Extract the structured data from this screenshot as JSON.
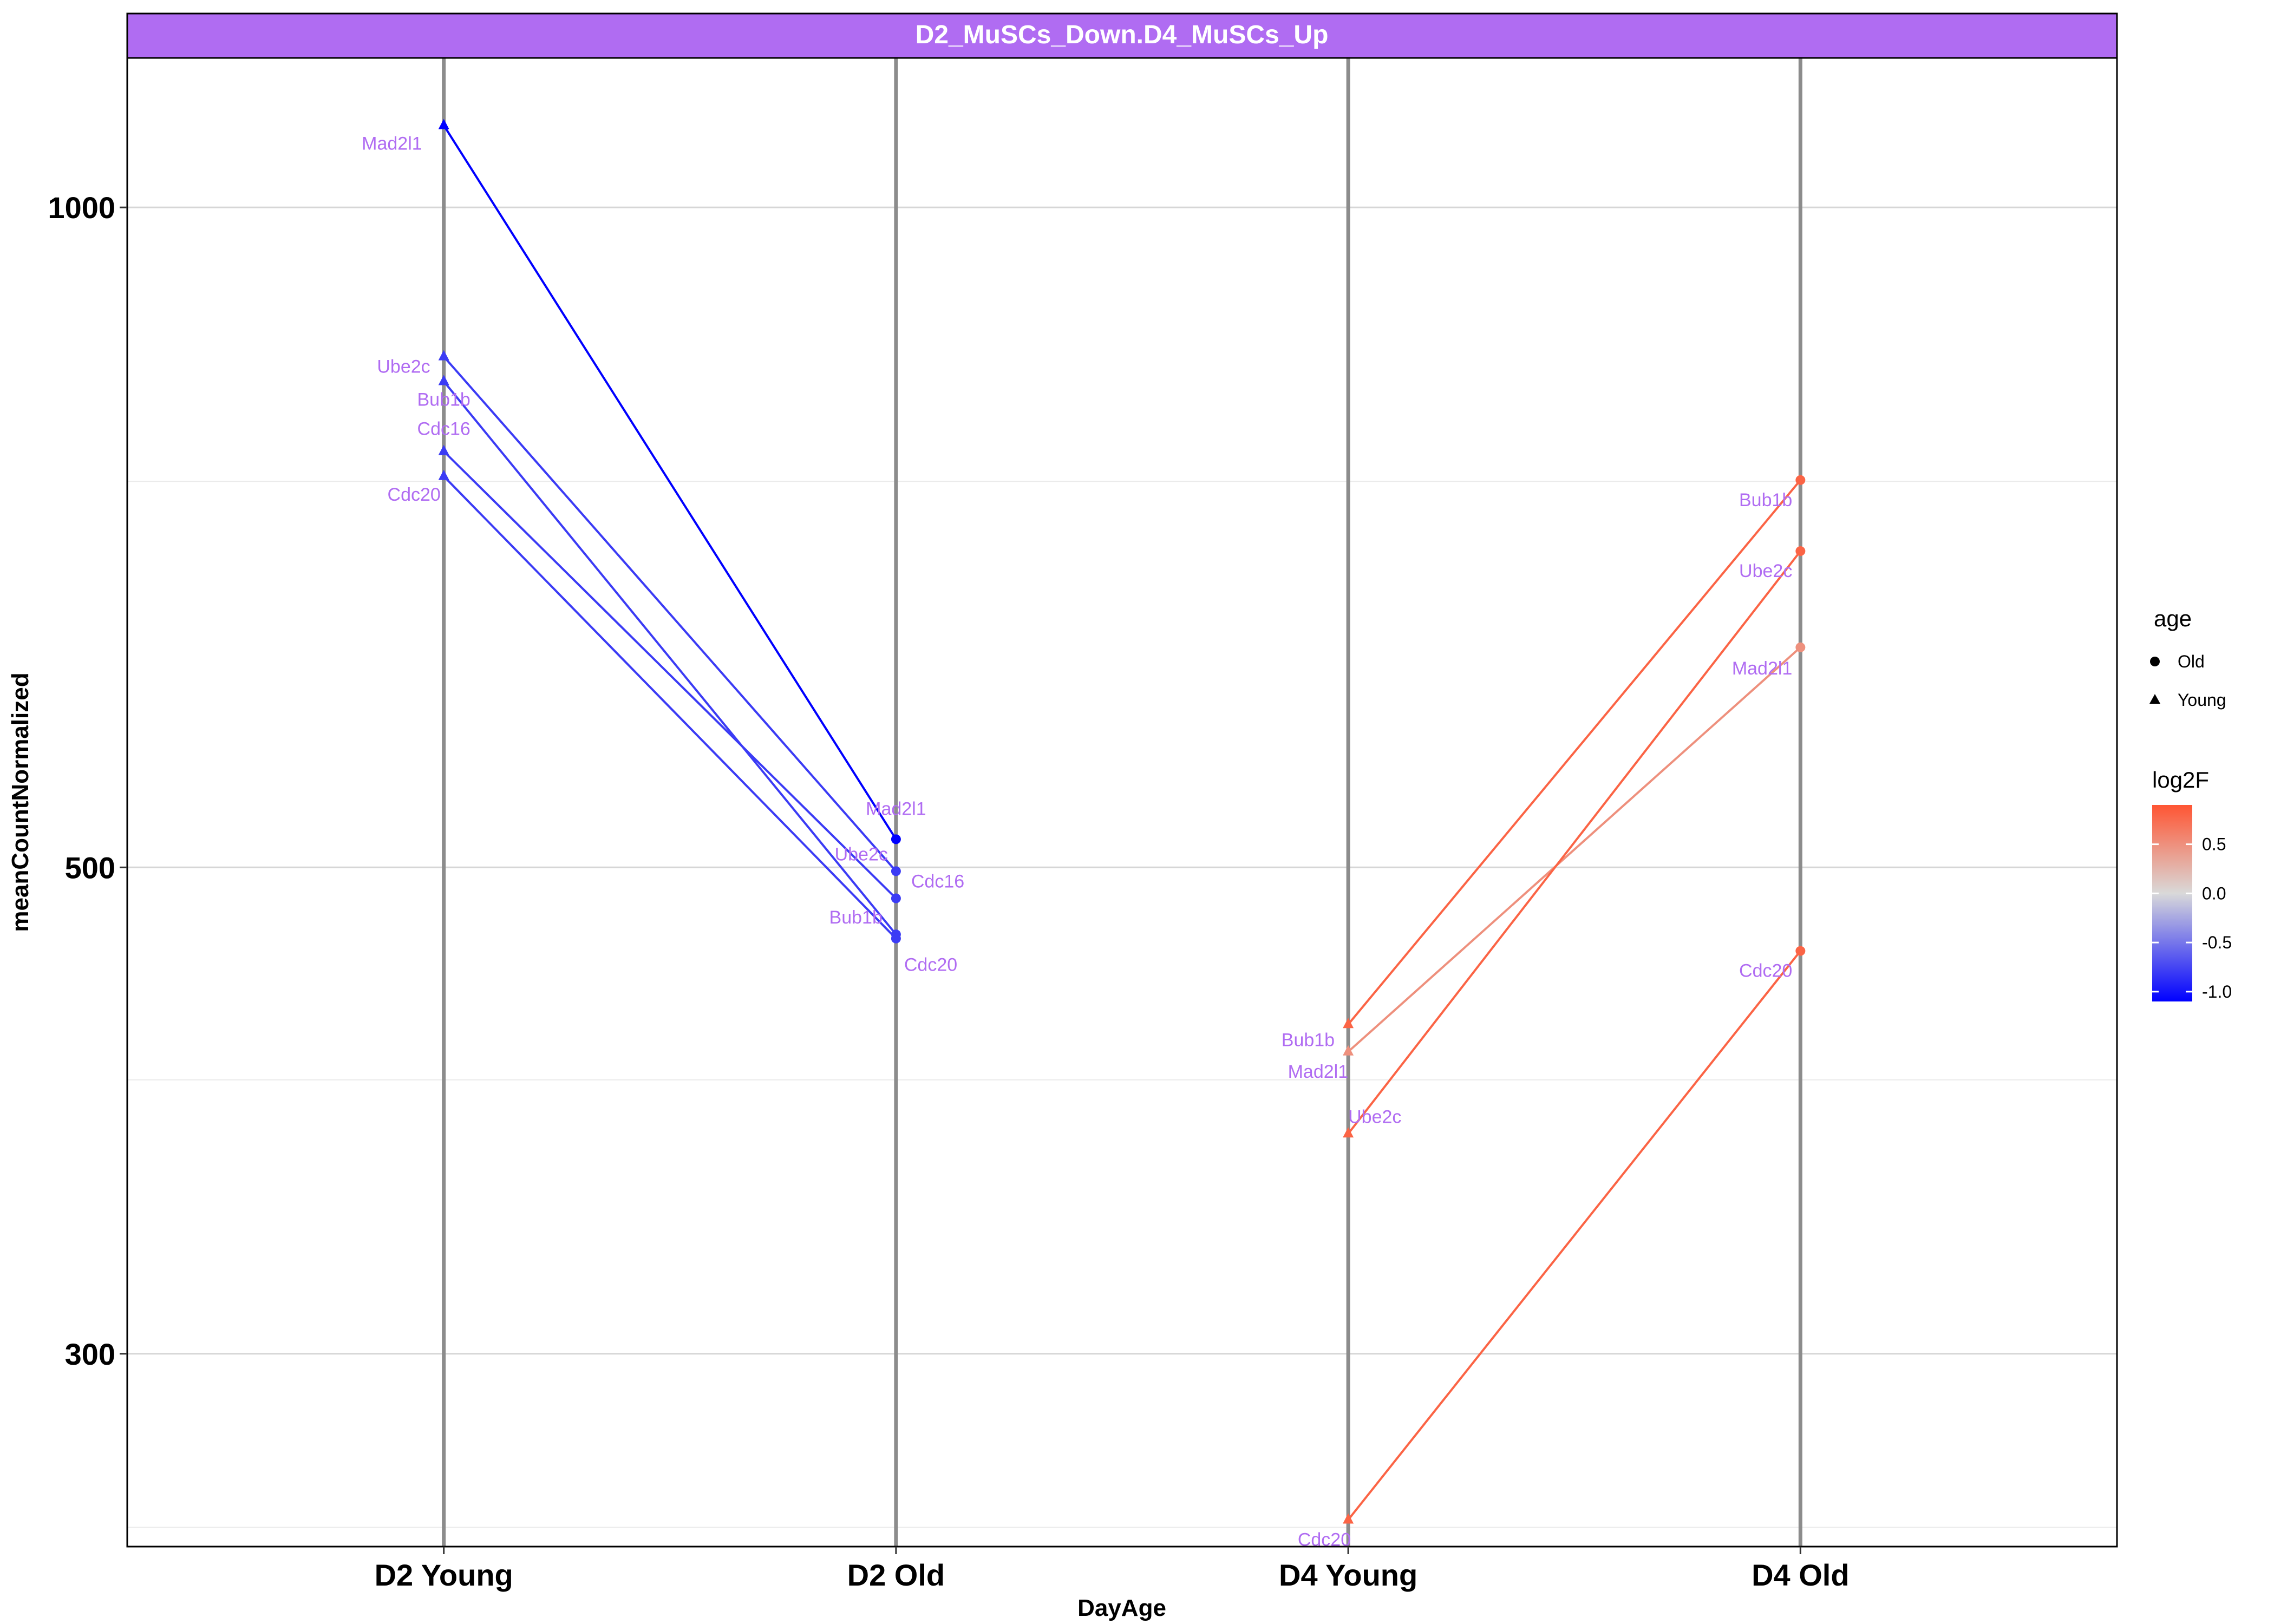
{
  "facet_title": "D2_MuSCs_Down.D4_MuSCs_Up",
  "colors": {
    "facet_strip": "#B06CF2",
    "label_text": "#B06CF2",
    "log2F_low": "#0000FF",
    "log2F_mid": "#D9D9D9",
    "log2F_high": "#FF5533"
  },
  "chart_data": {
    "type": "line",
    "title": "",
    "xlabel": "DayAge",
    "ylabel": "meanCountNormalized",
    "y_scale": "log10",
    "ylim": [
      245,
      1170
    ],
    "y_major_ticks": [
      300,
      500,
      1000
    ],
    "y_major_tick_labels": [
      "300",
      "500",
      "1000"
    ],
    "y_minor_ticks": [
      250,
      400,
      750
    ],
    "categories": [
      "D2 Young",
      "D2 Old",
      "D4 Young",
      "D4 Old"
    ],
    "grid": true,
    "legend_position": "right",
    "legend": {
      "shape_title": "age",
      "shape_entries": [
        {
          "label": "Old",
          "shape": "circle"
        },
        {
          "label": "Young",
          "shape": "triangle"
        }
      ],
      "color_title": "log2F",
      "color_ticks": [
        0.5,
        0.0,
        -0.5,
        -1.0
      ],
      "color_tick_labels": [
        "0.5",
        "0.0",
        "-0.5",
        "-1.0"
      ],
      "color_range": [
        -1.1,
        0.9
      ]
    },
    "series": [
      {
        "name": "Mad2l1",
        "group": "D2",
        "log2F": -1.1,
        "young": 1090,
        "old": 515
      },
      {
        "name": "Ube2c",
        "group": "D2",
        "log2F": -0.8,
        "young": 855,
        "old": 498
      },
      {
        "name": "Bub1b",
        "group": "D2",
        "log2F": -0.8,
        "young": 833,
        "old": 466
      },
      {
        "name": "Cdc16",
        "group": "D2",
        "log2F": -0.8,
        "young": 774,
        "old": 484
      },
      {
        "name": "Cdc20",
        "group": "D2",
        "log2F": -0.8,
        "young": 754,
        "old": 464
      },
      {
        "name": "Bub1b",
        "group": "D4",
        "log2F": 0.8,
        "young": 424,
        "old": 751
      },
      {
        "name": "Mad2l1",
        "group": "D4",
        "log2F": 0.5,
        "young": 412,
        "old": 630
      },
      {
        "name": "Ube2c",
        "group": "D4",
        "log2F": 0.8,
        "young": 378,
        "old": 697
      },
      {
        "name": "Cdc20",
        "group": "D4",
        "log2F": 0.8,
        "young": 252,
        "old": 458
      }
    ]
  }
}
